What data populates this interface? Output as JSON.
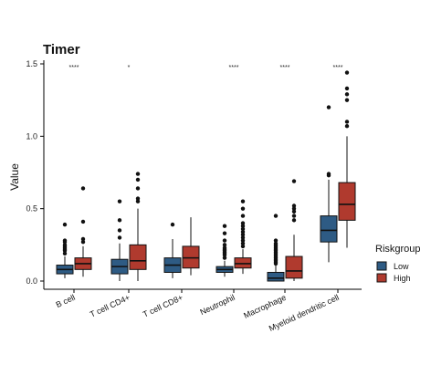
{
  "chart_data": {
    "type": "boxplot",
    "title": "Timer",
    "xlabel": "",
    "ylabel": "Value",
    "ylim": [
      -0.04,
      1.52
    ],
    "yticks": [
      "0.0",
      "0.5",
      "1.0",
      "1.5"
    ],
    "categories": [
      "B cell",
      "T cell CD4+",
      "T cell CD8+",
      "Neutrophil",
      "Macrophage",
      "Myeloid dendritic cell"
    ],
    "significance": [
      "****",
      "*",
      "",
      "****",
      "****",
      "****"
    ],
    "legend": {
      "title": "Riskgroup",
      "placement": "right"
    },
    "series": [
      {
        "name": "Low",
        "color": "#2e5b84",
        "boxes": [
          {
            "min": 0.02,
            "q1": 0.05,
            "median": 0.08,
            "q3": 0.11,
            "max": 0.17,
            "outliers": [
              0.19,
              0.21,
              0.22,
              0.23,
              0.24,
              0.25,
              0.27,
              0.28,
              0.39
            ]
          },
          {
            "min": 0.0,
            "q1": 0.05,
            "median": 0.1,
            "q3": 0.15,
            "max": 0.26,
            "outliers": [
              0.3,
              0.35,
              0.42,
              0.55
            ]
          },
          {
            "min": 0.02,
            "q1": 0.06,
            "median": 0.11,
            "q3": 0.16,
            "max": 0.29,
            "outliers": [
              0.39
            ]
          },
          {
            "min": 0.03,
            "q1": 0.06,
            "median": 0.08,
            "q3": 0.1,
            "max": 0.14,
            "outliers": [
              0.16,
              0.18,
              0.19,
              0.2,
              0.21,
              0.22,
              0.23,
              0.25,
              0.28,
              0.33,
              0.38
            ]
          },
          {
            "min": 0.0,
            "q1": 0.0,
            "median": 0.02,
            "q3": 0.06,
            "max": 0.11,
            "outliers": [
              0.12,
              0.13,
              0.14,
              0.15,
              0.16,
              0.17,
              0.18,
              0.19,
              0.2,
              0.21,
              0.22,
              0.23,
              0.24,
              0.25,
              0.26,
              0.28,
              0.45
            ]
          },
          {
            "min": 0.13,
            "q1": 0.27,
            "median": 0.35,
            "q3": 0.45,
            "max": 0.7,
            "outliers": [
              0.73,
              0.74,
              1.2
            ]
          }
        ]
      },
      {
        "name": "High",
        "color": "#b03a2e",
        "boxes": [
          {
            "min": 0.03,
            "q1": 0.08,
            "median": 0.12,
            "q3": 0.16,
            "max": 0.24,
            "outliers": [
              0.27,
              0.29,
              0.41,
              0.64
            ]
          },
          {
            "min": 0.0,
            "q1": 0.08,
            "median": 0.14,
            "q3": 0.25,
            "max": 0.5,
            "outliers": [
              0.55,
              0.57,
              0.64,
              0.7,
              0.74
            ]
          },
          {
            "min": 0.04,
            "q1": 0.09,
            "median": 0.16,
            "q3": 0.24,
            "max": 0.44,
            "outliers": []
          },
          {
            "min": 0.05,
            "q1": 0.09,
            "median": 0.12,
            "q3": 0.16,
            "max": 0.22,
            "outliers": [
              0.24,
              0.26,
              0.28,
              0.3,
              0.32,
              0.34,
              0.36,
              0.38,
              0.4,
              0.45,
              0.5,
              0.55
            ]
          },
          {
            "min": 0.0,
            "q1": 0.02,
            "median": 0.07,
            "q3": 0.17,
            "max": 0.32,
            "outliers": [
              0.42,
              0.45,
              0.48,
              0.5,
              0.52,
              0.69
            ]
          },
          {
            "min": 0.23,
            "q1": 0.42,
            "median": 0.53,
            "q3": 0.68,
            "max": 1.0,
            "outliers": [
              1.07,
              1.1,
              1.25,
              1.29,
              1.33,
              1.44
            ]
          }
        ]
      }
    ]
  }
}
